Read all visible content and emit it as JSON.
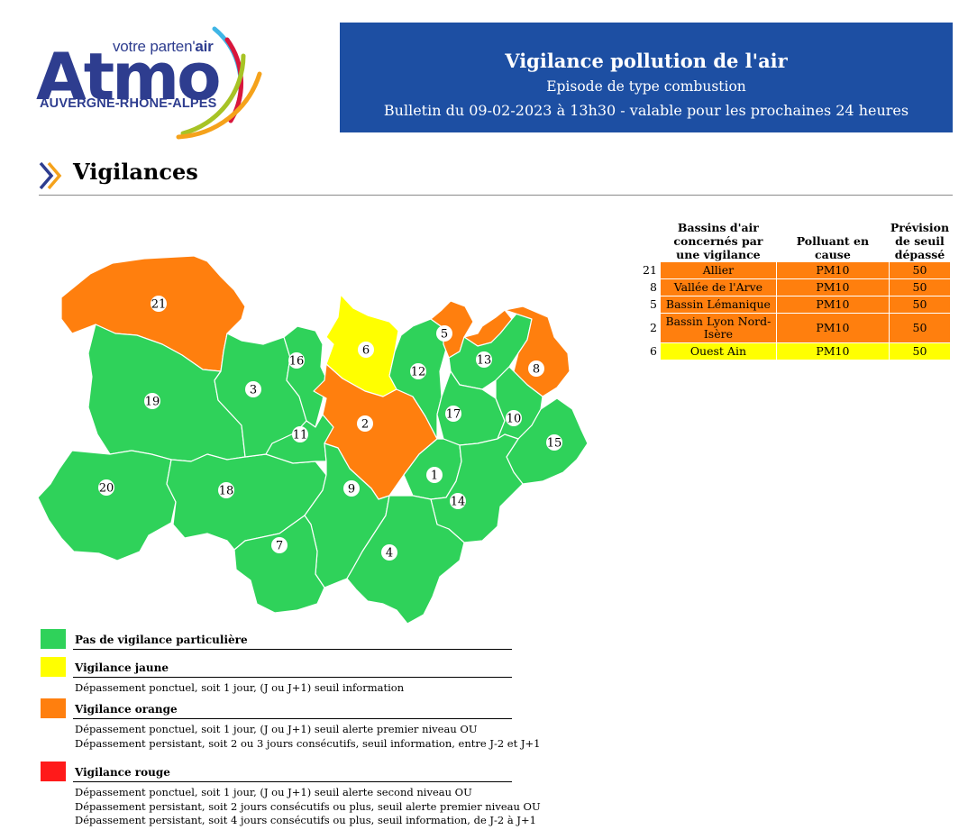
{
  "logo": {
    "tagline_prefix": "votre parten'",
    "tagline_suffix": "air",
    "word": "Atmo",
    "region": "AUVERGNE-RHÔNE-ALPES"
  },
  "header": {
    "title": "Vigilance pollution de l'air",
    "subtitle": "Episode de type combustion",
    "bulletin": "Bulletin du 09-02-2023 à 13h30 - valable pour les prochaines 24 heures"
  },
  "section": {
    "title": "Vigilances"
  },
  "table": {
    "headers": [
      "Bassins d'air concernés par une vigilance",
      "Polluant en cause",
      "Prévision de seuil dépassé"
    ],
    "rows": [
      {
        "num": "21",
        "bassin": "Allier",
        "polluant": "PM10",
        "seuil": "50",
        "level": "orange"
      },
      {
        "num": "8",
        "bassin": "Vallée de l'Arve",
        "polluant": "PM10",
        "seuil": "50",
        "level": "orange"
      },
      {
        "num": "5",
        "bassin": "Bassin Lémanique",
        "polluant": "PM10",
        "seuil": "50",
        "level": "orange"
      },
      {
        "num": "2",
        "bassin": "Bassin Lyon Nord-Isère",
        "polluant": "PM10",
        "seuil": "50",
        "level": "orange"
      },
      {
        "num": "6",
        "bassin": "Ouest Ain",
        "polluant": "PM10",
        "seuil": "50",
        "level": "yellow"
      }
    ]
  },
  "colors": {
    "green": "#2fd25a",
    "yellow": "#ffff00",
    "orange": "#ff7f0e",
    "red": "#ff1a1a",
    "header_blue": "#1d4fa3"
  },
  "map": {
    "zones": [
      {
        "id": "21",
        "level": "orange"
      },
      {
        "id": "19",
        "level": "green"
      },
      {
        "id": "20",
        "level": "green"
      },
      {
        "id": "18",
        "level": "green"
      },
      {
        "id": "3",
        "level": "green"
      },
      {
        "id": "16",
        "level": "green"
      },
      {
        "id": "11",
        "level": "green"
      },
      {
        "id": "6",
        "level": "yellow"
      },
      {
        "id": "2",
        "level": "orange"
      },
      {
        "id": "12",
        "level": "green"
      },
      {
        "id": "5",
        "level": "orange"
      },
      {
        "id": "13",
        "level": "green"
      },
      {
        "id": "8",
        "level": "orange"
      },
      {
        "id": "17",
        "level": "green"
      },
      {
        "id": "10",
        "level": "green"
      },
      {
        "id": "15",
        "level": "green"
      },
      {
        "id": "1",
        "level": "green"
      },
      {
        "id": "14",
        "level": "green"
      },
      {
        "id": "9",
        "level": "green"
      },
      {
        "id": "7",
        "level": "green"
      },
      {
        "id": "4",
        "level": "green"
      }
    ]
  },
  "legend": [
    {
      "level": "green",
      "title": "Pas de vigilance particulière",
      "desc": []
    },
    {
      "level": "yellow",
      "title": "Vigilance jaune",
      "desc": [
        "Dépassement ponctuel, soit 1 jour, (J ou J+1) seuil information"
      ]
    },
    {
      "level": "orange",
      "title": "Vigilance orange",
      "desc": [
        "Dépassement ponctuel, soit 1 jour, (J ou J+1) seuil alerte premier niveau OU",
        "Dépassement persistant, soit 2 ou 3 jours consécutifs, seuil information, entre J-2 et J+1"
      ]
    },
    {
      "level": "red",
      "title": "Vigilance rouge",
      "desc": [
        "Dépassement ponctuel, soit 1 jour, (J ou J+1) seuil alerte second niveau OU",
        "Dépassement persistant, soit 2 jours consécutifs ou plus, seuil alerte premier niveau OU",
        "Dépassement persistant, soit 4 jours consécutifs ou plus, seuil information, de J-2 à J+1"
      ]
    }
  ]
}
